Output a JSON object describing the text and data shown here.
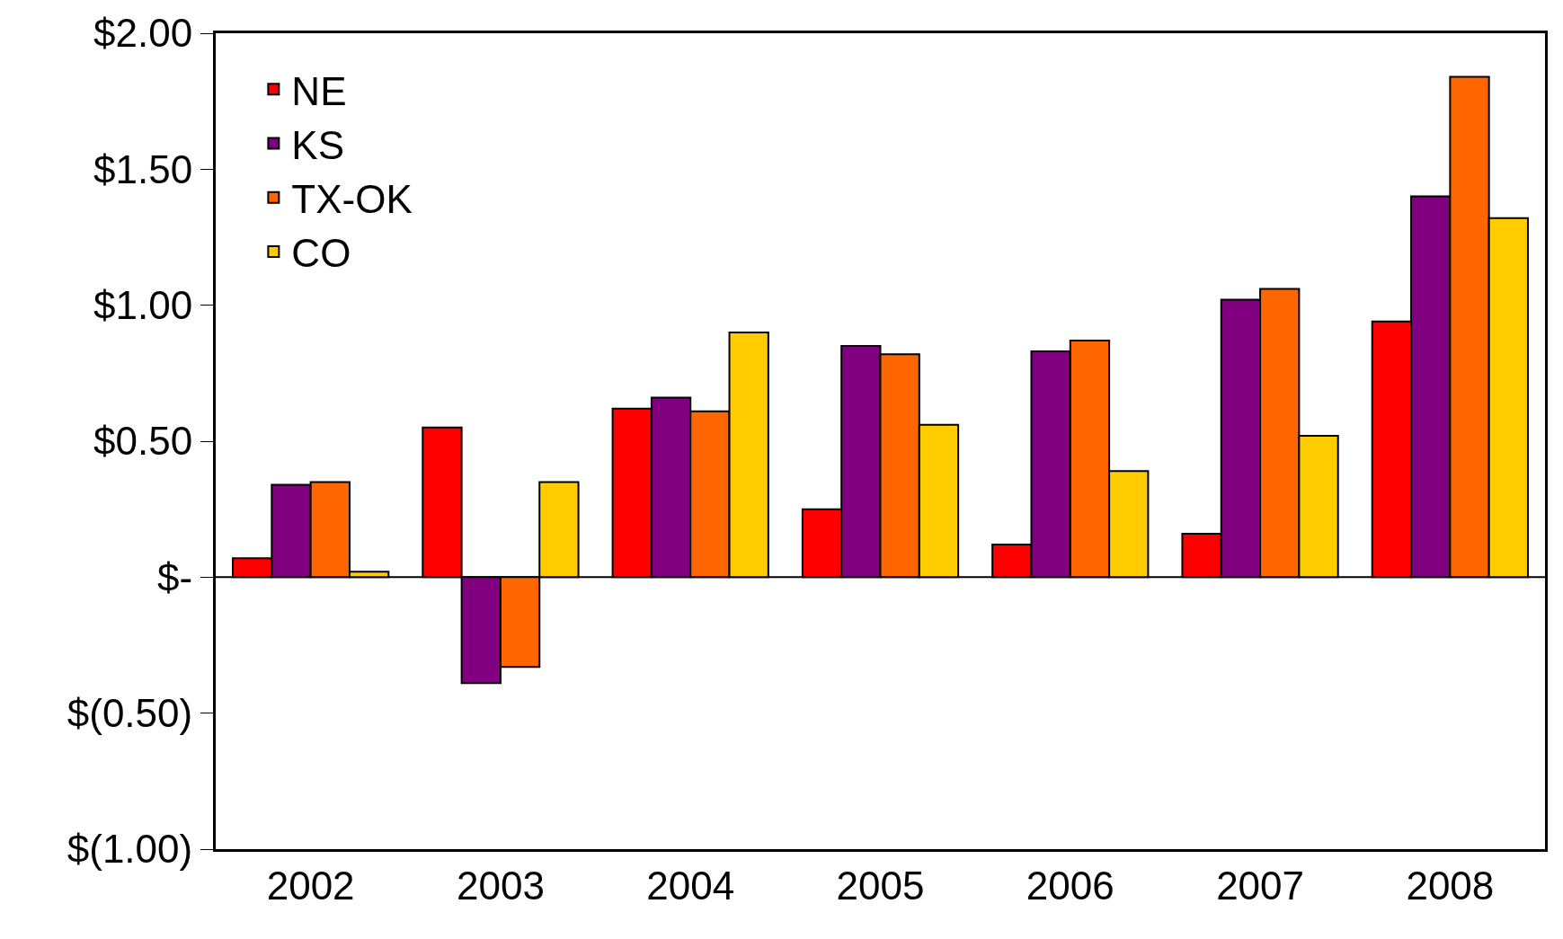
{
  "chart_data": {
    "type": "bar",
    "categories": [
      "2002",
      "2003",
      "2004",
      "2005",
      "2006",
      "2007",
      "2008"
    ],
    "series": [
      {
        "name": "NE",
        "color": "#ff0000",
        "values": [
          0.07,
          0.55,
          0.62,
          0.25,
          0.12,
          0.16,
          0.94
        ]
      },
      {
        "name": "KS",
        "color": "#800080",
        "values": [
          0.34,
          -0.39,
          0.66,
          0.85,
          0.83,
          1.02,
          1.4
        ]
      },
      {
        "name": "TX-OK",
        "color": "#ff6600",
        "values": [
          0.35,
          -0.33,
          0.61,
          0.82,
          0.87,
          1.06,
          1.84
        ]
      },
      {
        "name": "CO",
        "color": "#ffcc00",
        "values": [
          0.02,
          0.35,
          0.9,
          0.56,
          0.39,
          0.52,
          1.32
        ]
      }
    ],
    "ylim": [
      -1,
      2
    ],
    "yticks": [
      {
        "value": 2,
        "label": "$2.00"
      },
      {
        "value": 1.5,
        "label": "$1.50"
      },
      {
        "value": 1,
        "label": "$1.00"
      },
      {
        "value": 0.5,
        "label": "$0.50"
      },
      {
        "value": 0,
        "label": "$-"
      },
      {
        "value": -0.5,
        "label": "$(0.50)"
      },
      {
        "value": -1,
        "label": "$(1.00)"
      }
    ],
    "ref_lines": [
      {
        "axis": "y",
        "value": 0,
        "color": "#000000"
      }
    ],
    "grid": false,
    "legend": "top left"
  }
}
